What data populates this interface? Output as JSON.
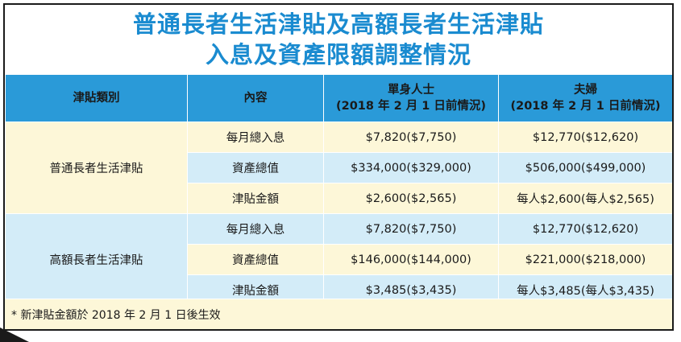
{
  "title": {
    "line1": "普通長者生活津貼及高額長者生活津貼",
    "line2": "入息及資產限額調整情況"
  },
  "headers": {
    "category": "津貼類別",
    "content": "內容",
    "single": "單身人士",
    "single_note": "(2018 年 2 月 1 日前情況)",
    "couple": "夫婦",
    "couple_note": "(2018 年 2 月 1 日前情況)"
  },
  "groups": [
    {
      "name": "普通長者生活津貼",
      "rows": [
        {
          "item": "每月總入息",
          "single": "$7,820($7,750)",
          "couple": "$12,770($12,620)"
        },
        {
          "item": "資產總值",
          "single": "$334,000($329,000)",
          "couple": "$506,000($499,000)"
        },
        {
          "item": "津貼金額",
          "single": "$2,600($2,565)",
          "couple": "每人$2,600(每人$2,565)"
        }
      ]
    },
    {
      "name": "高額長者生活津貼",
      "rows": [
        {
          "item": "每月總入息",
          "single": "$7,820($7,750)",
          "couple": "$12,770($12,620)"
        },
        {
          "item": "資產總值",
          "single": "$146,000($144,000)",
          "couple": "$221,000($218,000)"
        },
        {
          "item": "津貼金額",
          "single": "$3,485($3,435)",
          "couple": "每人$3,485(每人$3,435)"
        }
      ]
    }
  ],
  "footnote": "* 新津貼金額於 2018 年 2 月 1 日後生效",
  "colors": {
    "title": "#1a8bd0",
    "header_bg": "#2a9ad8",
    "yellow_row": "#fdf7d8",
    "blue_row": "#d3ecf8"
  }
}
